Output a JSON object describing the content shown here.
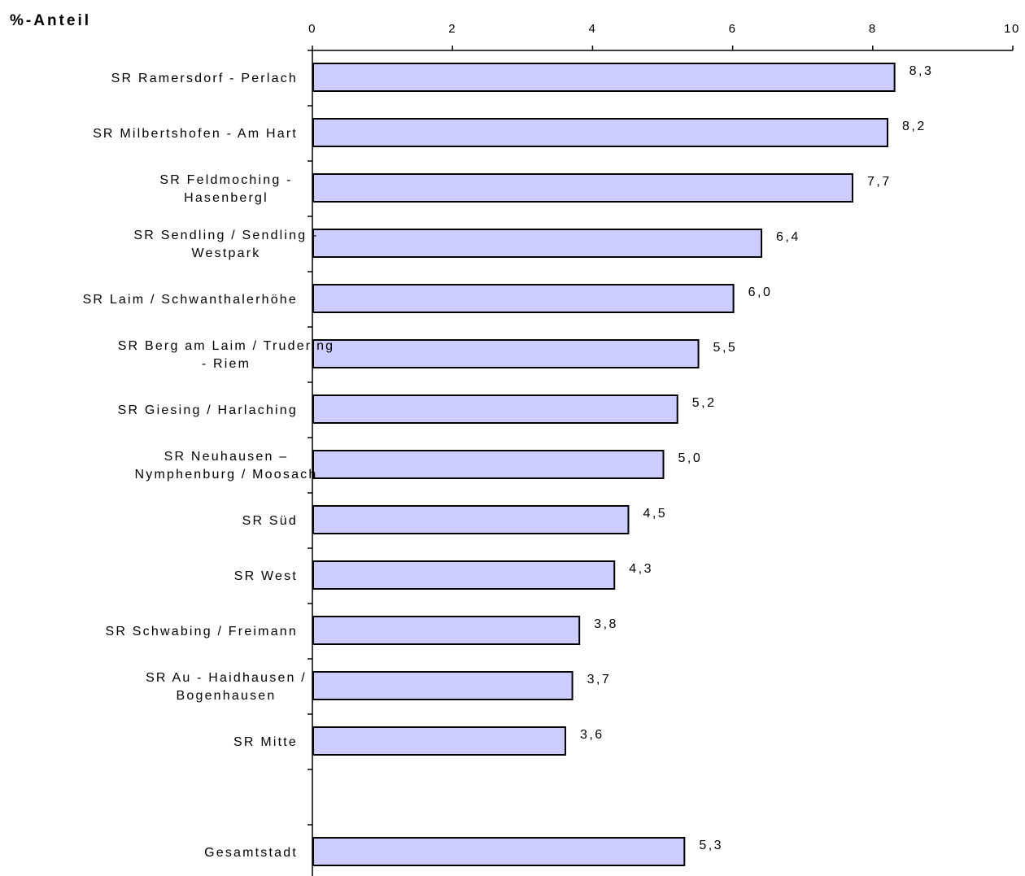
{
  "chart_data": {
    "type": "bar",
    "orientation": "horizontal",
    "unit_label": "%-Anteil",
    "title": "",
    "xlabel": "",
    "ylabel": "",
    "xlim": [
      0,
      10
    ],
    "x_ticks": [
      "0",
      "2",
      "4",
      "6",
      "8",
      "10"
    ],
    "categories": [
      [
        "SR Ramersdorf - Perlach"
      ],
      [
        "SR Milbertshofen - Am Hart"
      ],
      [
        "SR Feldmoching -",
        "Hasenbergl"
      ],
      [
        "SR Sendling / Sendling -",
        "Westpark"
      ],
      [
        "SR Laim / Schwanthalerhöhe"
      ],
      [
        "SR Berg am Laim / Trudering",
        "- Riem"
      ],
      [
        "SR Giesing / Harlaching"
      ],
      [
        "SR Neuhausen –",
        "Nymphenburg / Moosach"
      ],
      [
        "SR Süd"
      ],
      [
        "SR West"
      ],
      [
        "SR Schwabing / Freimann"
      ],
      [
        "SR Au - Haidhausen /",
        "Bogenhausen"
      ],
      [
        "SR Mitte"
      ],
      [],
      [
        "Gesamtstadt"
      ]
    ],
    "values": [
      8.3,
      8.2,
      7.7,
      6.4,
      6.0,
      5.5,
      5.2,
      5.0,
      4.5,
      4.3,
      3.8,
      3.7,
      3.6,
      null,
      5.3
    ],
    "value_labels": [
      "8,3",
      "8,2",
      "7,7",
      "6,4",
      "6,0",
      "5,5",
      "5,2",
      "5,0",
      "4,5",
      "4,3",
      "3,8",
      "3,7",
      "3,6",
      "",
      "5,3"
    ],
    "bar_color": "#ccccff",
    "bar_edge_color": "#000000",
    "grid": false,
    "legend": "none"
  }
}
